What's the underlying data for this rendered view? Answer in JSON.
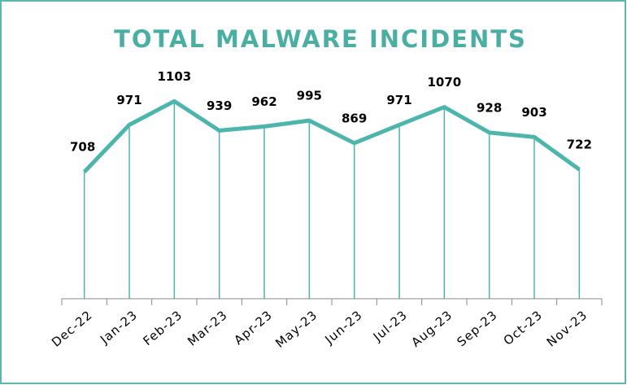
{
  "chart_data": {
    "type": "line",
    "title": "TOTAL MALWARE INCIDENTS",
    "categories": [
      "Dec-22",
      "Jan-23",
      "Feb-23",
      "Mar-23",
      "Apr-23",
      "May-23",
      "Jun-23",
      "Jul-23",
      "Aug-23",
      "Sep-23",
      "Oct-23",
      "Nov-23"
    ],
    "values": [
      708,
      971,
      1103,
      939,
      962,
      995,
      869,
      971,
      1070,
      928,
      903,
      722
    ],
    "color": "#4db6ac",
    "ylim": [
      0,
      1200
    ],
    "drop_lines": true
  }
}
